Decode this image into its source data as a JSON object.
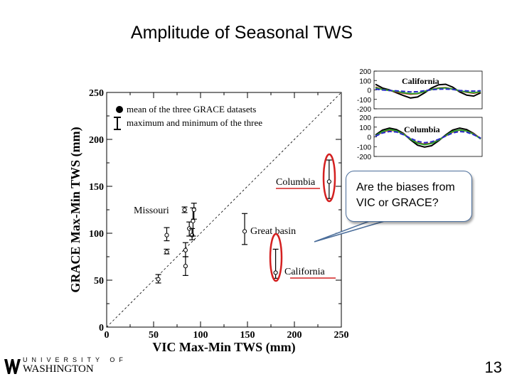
{
  "slide": {
    "title": "Amplitude of Seasonal TWS",
    "callout": "Are the biases from VIC or GRACE?",
    "page_number": "13",
    "logo": {
      "letters": "UNIVERSITY OF",
      "name": "WASHINGTON"
    }
  },
  "chart_data": [
    {
      "type": "scatter",
      "xlabel": "VIC Max-Min TWS (mm)",
      "ylabel": "GRACE Max-Min TWS (mm)",
      "xlim": [
        0,
        250
      ],
      "ylim": [
        0,
        250
      ],
      "xticks": [
        "0",
        "50",
        "100",
        "150",
        "200",
        "250"
      ],
      "yticks": [
        "0",
        "50",
        "100",
        "150",
        "200",
        "250"
      ],
      "legend": {
        "placement": "top-left",
        "entries": [
          "mean of the three GRACE datasets",
          "maximum and minimum of the three"
        ]
      },
      "reference_line": "1:1",
      "points": [
        {
          "x": 237,
          "y": 155,
          "ymin": 137,
          "ymax": 178
        },
        {
          "x": 147,
          "y": 102,
          "ymin": 88,
          "ymax": 121
        },
        {
          "x": 180,
          "y": 58,
          "ymin": 52,
          "ymax": 83
        },
        {
          "x": 55,
          "y": 51,
          "ymin": 47,
          "ymax": 56
        },
        {
          "x": 64,
          "y": 80,
          "ymin": 78,
          "ymax": 83
        },
        {
          "x": 64,
          "y": 98,
          "ymin": 92,
          "ymax": 106
        },
        {
          "x": 83,
          "y": 125,
          "ymin": 122,
          "ymax": 128
        },
        {
          "x": 84,
          "y": 65,
          "ymin": 55,
          "ymax": 75
        },
        {
          "x": 84,
          "y": 82,
          "ymin": 75,
          "ymax": 90
        },
        {
          "x": 88,
          "y": 105,
          "ymin": 97,
          "ymax": 112
        },
        {
          "x": 91,
          "y": 98,
          "ymin": 93,
          "ymax": 105
        },
        {
          "x": 92,
          "y": 113,
          "ymin": 97,
          "ymax": 127
        },
        {
          "x": 93,
          "y": 125,
          "ymin": 115,
          "ymax": 132
        }
      ],
      "annotations": [
        "Columbia",
        "Missouri",
        "Great basin",
        "California"
      ]
    },
    {
      "type": "line",
      "title": "California",
      "yticks": [
        "200",
        "100",
        "0",
        "-100",
        "-200"
      ],
      "ylim": [
        -200,
        200
      ],
      "series_colors": [
        "#000000",
        "#d42020",
        "#2ca02c",
        "#2828c8"
      ],
      "series": [
        {
          "values": [
            60,
            20,
            0,
            -30,
            -60,
            -85,
            -75,
            -30,
            20,
            55,
            60,
            30,
            -20,
            -55,
            -65,
            -30
          ]
        },
        {
          "values": [
            30,
            5,
            -5,
            -20,
            -35,
            -45,
            -40,
            -15,
            5,
            20,
            25,
            10,
            -10,
            -25,
            -35,
            -20
          ]
        },
        {
          "values": [
            25,
            5,
            -5,
            -15,
            -30,
            -40,
            -38,
            -15,
            5,
            18,
            22,
            10,
            -8,
            -22,
            -30,
            -18
          ]
        },
        {
          "values": [
            10,
            0,
            -5,
            -10,
            -15,
            -20,
            -18,
            -8,
            2,
            8,
            10,
            5,
            -5,
            -10,
            -12,
            -8
          ]
        }
      ]
    },
    {
      "type": "line",
      "title": "Columbia",
      "yticks": [
        "200",
        "100",
        "0",
        "-100",
        "-200"
      ],
      "ylim": [
        -200,
        200
      ],
      "series_colors": [
        "#000000",
        "#d42020",
        "#2ca02c",
        "#2828c8"
      ],
      "series": [
        {
          "values": [
            20,
            70,
            90,
            75,
            35,
            -30,
            -85,
            -105,
            -90,
            -40,
            20,
            70,
            90,
            75,
            35,
            -20
          ]
        },
        {
          "values": [
            10,
            50,
            70,
            60,
            30,
            -20,
            -60,
            -75,
            -65,
            -30,
            10,
            50,
            70,
            60,
            30,
            -15
          ]
        },
        {
          "values": [
            12,
            55,
            75,
            62,
            28,
            -22,
            -65,
            -80,
            -68,
            -32,
            12,
            55,
            72,
            60,
            28,
            -18
          ]
        },
        {
          "values": [
            8,
            40,
            55,
            50,
            22,
            -15,
            -45,
            -60,
            -50,
            -25,
            8,
            40,
            55,
            48,
            22,
            -12
          ]
        }
      ]
    }
  ]
}
